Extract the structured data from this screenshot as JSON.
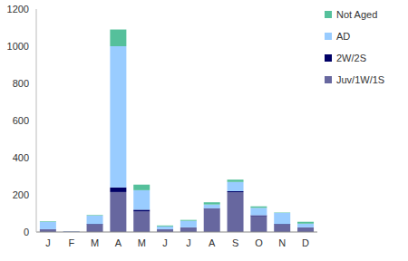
{
  "chart_data": {
    "type": "bar",
    "stacked": true,
    "categories": [
      "J",
      "F",
      "M",
      "A",
      "M",
      "J",
      "J",
      "A",
      "S",
      "O",
      "N",
      "D"
    ],
    "series": [
      {
        "name": "Juv/1W/1S",
        "color": "#67679f",
        "values": [
          15,
          3,
          40,
          215,
          110,
          15,
          25,
          125,
          215,
          85,
          40,
          25
        ]
      },
      {
        "name": "2W/2S",
        "color": "#000066",
        "values": [
          0,
          0,
          3,
          25,
          10,
          0,
          0,
          3,
          5,
          5,
          3,
          0
        ]
      },
      {
        "name": "AD",
        "color": "#99ccff",
        "values": [
          40,
          2,
          45,
          760,
          105,
          15,
          35,
          20,
          50,
          40,
          60,
          20
        ]
      },
      {
        "name": "Not Aged",
        "color": "#55c09b",
        "values": [
          3,
          0,
          3,
          90,
          30,
          5,
          5,
          12,
          12,
          8,
          2,
          10
        ]
      }
    ],
    "ylim": [
      0,
      1200
    ],
    "yticks": [
      0,
      200,
      400,
      600,
      800,
      1000,
      1200
    ],
    "grid": false,
    "legend": "upper right"
  }
}
